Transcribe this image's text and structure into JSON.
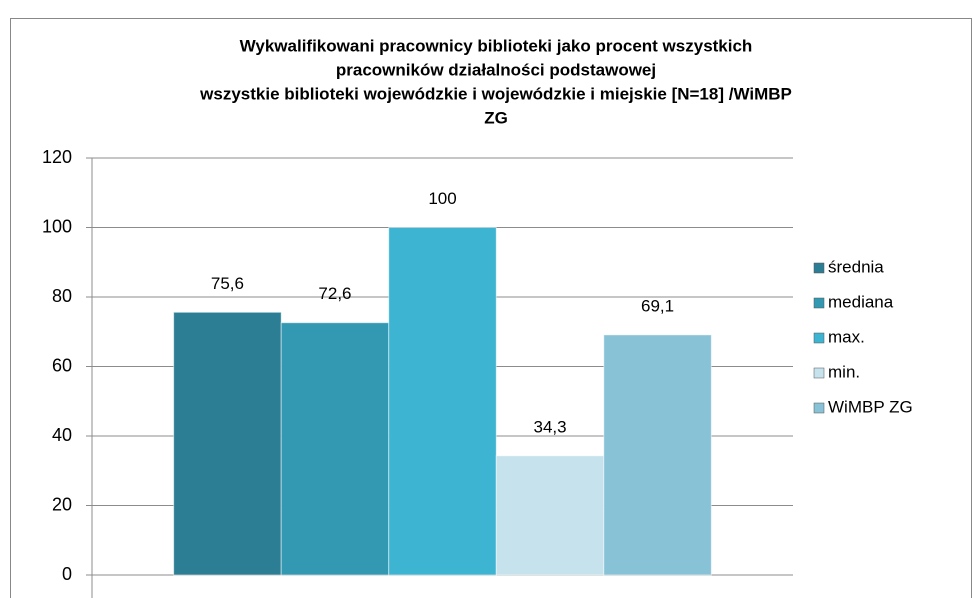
{
  "chart_data": {
    "type": "bar",
    "title": [
      "Wykwalifikowani pracownicy biblioteki jako procent wszystkich",
      "pracowników działalności podstawowej",
      "wszystkie biblioteki wojewódzkie i wojewódzkie i miejskie  [N=18] /WiMBP",
      "ZG"
    ],
    "categories": [
      null
    ],
    "series": [
      {
        "name": "średnia",
        "color": "#2c7e95",
        "values": [
          75.6
        ],
        "value_labels": [
          "75,6"
        ]
      },
      {
        "name": "mediana",
        "color": "#3399b3",
        "values": [
          72.6
        ],
        "value_labels": [
          "72,6"
        ]
      },
      {
        "name": "max.",
        "color": "#3db4d2",
        "values": [
          100
        ],
        "value_labels": [
          "100"
        ]
      },
      {
        "name": "min.",
        "color": "#c6e2ec",
        "values": [
          34.3
        ],
        "value_labels": [
          "34,3"
        ]
      },
      {
        "name": "WiMBP ZG",
        "color": "#88c2d7",
        "values": [
          69.1
        ],
        "value_labels": [
          "69,1"
        ]
      }
    ],
    "ylim": [
      0,
      120
    ],
    "yticks": [
      0,
      20,
      40,
      60,
      80,
      100,
      120
    ],
    "grid": true,
    "legend": "right"
  }
}
